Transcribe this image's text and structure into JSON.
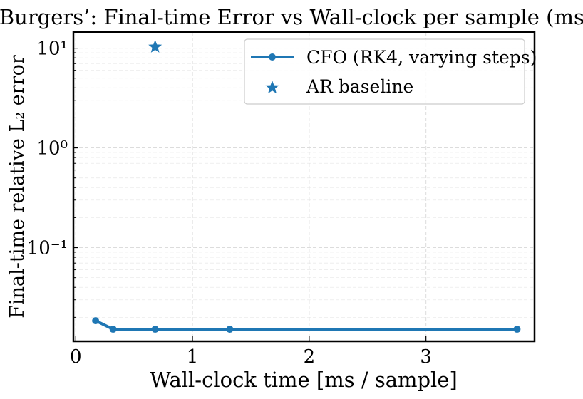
{
  "chart_data": {
    "type": "line",
    "title": "Burgers’: Final-time Error vs Wall-clock per sample (ms)",
    "xlabel": "Wall-clock time [ms / sample]",
    "ylabel": "Final-time relative L₂ error",
    "xlim": [
      -0.02,
      3.93
    ],
    "ylim": [
      0.0115,
      14.5
    ],
    "yscale": "log",
    "grid": true,
    "legend_position": "top-right",
    "xticks": [
      {
        "value": 0,
        "label": "0"
      },
      {
        "value": 1,
        "label": "1"
      },
      {
        "value": 2,
        "label": "2"
      },
      {
        "value": 3,
        "label": "3"
      }
    ],
    "yticks": [
      {
        "value": 0.1,
        "label": "10⁻¹"
      },
      {
        "value": 1,
        "label": "10⁰"
      },
      {
        "value": 10,
        "label": "10¹"
      }
    ],
    "series": [
      {
        "name": "CFO (RK4, varying steps)",
        "kind": "line-marker",
        "color": "#1f77b4",
        "x": [
          0.17,
          0.32,
          0.68,
          1.32,
          3.78
        ],
        "y": [
          0.0185,
          0.0152,
          0.0152,
          0.0152,
          0.0152
        ]
      },
      {
        "name": "AR baseline",
        "kind": "star",
        "color": "#1f77b4",
        "x": [
          0.68
        ],
        "y": [
          10.3
        ]
      }
    ]
  }
}
